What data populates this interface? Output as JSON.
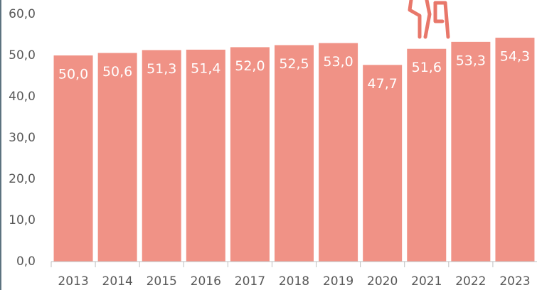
{
  "chart_data": {
    "type": "bar",
    "categories": [
      "2013",
      "2014",
      "2015",
      "2016",
      "2017",
      "2018",
      "2019",
      "2020",
      "2021",
      "2022",
      "2023"
    ],
    "values": [
      50.0,
      50.6,
      51.3,
      51.4,
      52.0,
      52.5,
      53.0,
      47.7,
      51.6,
      53.3,
      54.3
    ],
    "value_labels": [
      "50,0",
      "50,6",
      "51,3",
      "51,4",
      "52,0",
      "52,5",
      "53,0",
      "47,7",
      "51,6",
      "53,3",
      "54,3"
    ],
    "color": "#f09286",
    "ylim": [
      0,
      60
    ],
    "yticks": [
      {
        "value": 0,
        "label": "0,0"
      },
      {
        "value": 10,
        "label": "10,0"
      },
      {
        "value": 20,
        "label": "20,0"
      },
      {
        "value": 30,
        "label": "30,0"
      },
      {
        "value": 40,
        "label": "40,0"
      },
      {
        "value": 50,
        "label": "50,0"
      },
      {
        "value": 60,
        "label": "60,0"
      }
    ],
    "grid": false
  }
}
